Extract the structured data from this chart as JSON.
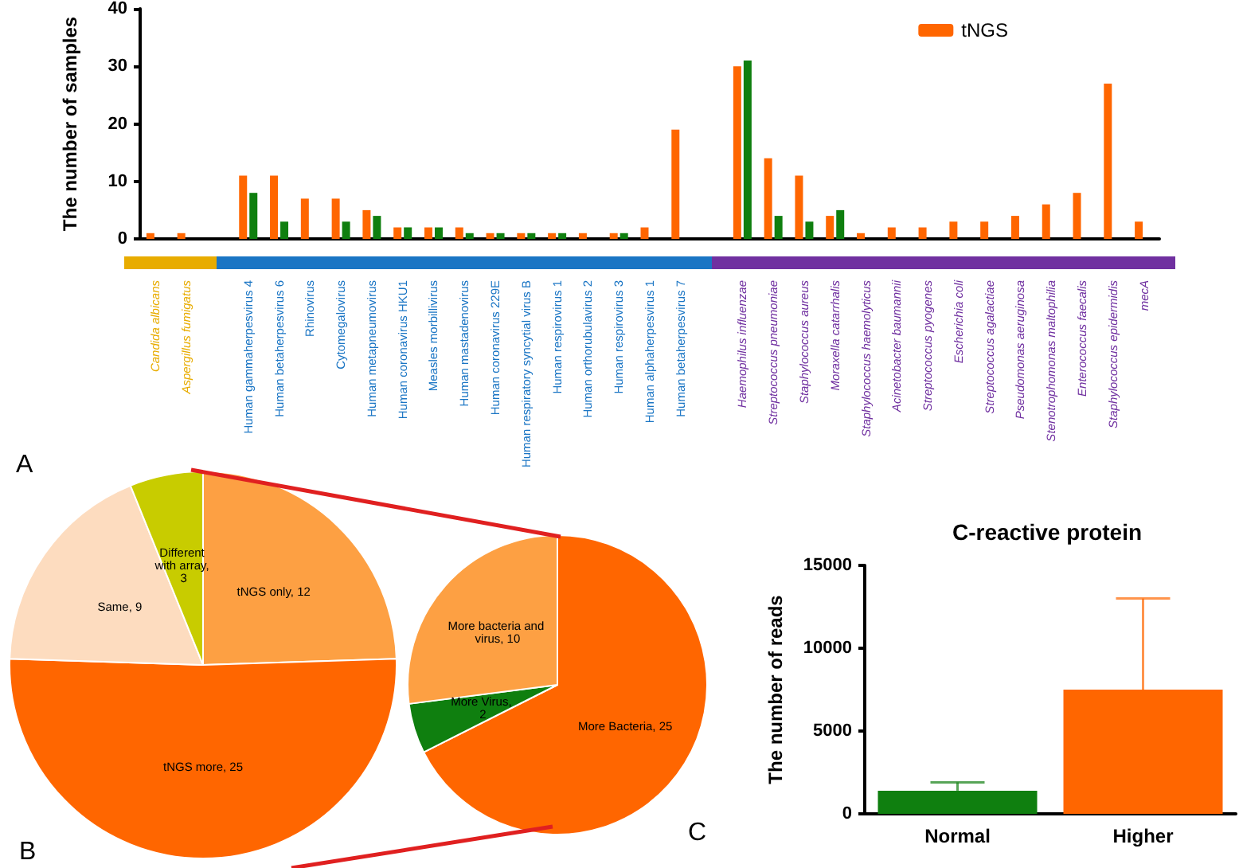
{
  "chart_data": [
    {
      "type": "bar",
      "ylabel": "The number of samples",
      "annotations": [
        "A"
      ],
      "categories": [
        "Candida albicans",
        "Aspergillus fumigatus",
        null,
        "Human gammaherpesvirus 4",
        "Human betaherpesvirus 6",
        "Rhinovirus",
        "Cytomegalovirus",
        "Human metapneumovirus",
        "Human coronavirus HKU1",
        "Measles morbillivirus",
        "Human mastadenovirus",
        "Human coronavirus 229E",
        "Human respiratory syncytial virus B",
        "Human respirovirus 1",
        "Human orthorubulavirus 2",
        "Human respirovirus 3",
        "Human alphaherpesvirus 1",
        "Human betaherpesvirus 7",
        null,
        "Haemophilus influenzae",
        "Streptococcus pneumoniae",
        "Staphylococcus aureus",
        "Moraxella catarrhalis",
        "Staphylococcus haemolyticus",
        "Acinetobacter baumannii",
        "Streptococcus pyogenes",
        "Escherichia coli",
        "Streptococcus agalactiae",
        "Pseudomonas aeruginosa",
        "Stenotrophomonas maltophilia",
        "Enterococcus faecalis",
        "Staphylococcus epidermidis",
        "mecA"
      ],
      "series": [
        {
          "name": "tNGS",
          "color": "#ff6600",
          "values": [
            1,
            1,
            null,
            11,
            11,
            7,
            7,
            5,
            2,
            2,
            2,
            1,
            1,
            1,
            1,
            1,
            2,
            19,
            null,
            30,
            14,
            11,
            4,
            1,
            2,
            2,
            3,
            3,
            4,
            6,
            8,
            27,
            3
          ]
        },
        {
          "color": "#0f7f0f",
          "values": [
            0,
            0,
            null,
            8,
            3,
            0,
            3,
            4,
            2,
            2,
            1,
            1,
            1,
            1,
            0,
            1,
            0,
            0,
            null,
            31,
            4,
            3,
            5,
            0,
            0,
            0,
            0,
            0,
            0,
            0,
            0,
            0,
            0
          ]
        }
      ],
      "ylim": [
        0,
        40
      ],
      "yticks": [
        0,
        10,
        20,
        30,
        40
      ],
      "grid": false,
      "legend": "top right"
    },
    {
      "type": "pie",
      "annotations": [
        "B"
      ],
      "categories": [
        null,
        null,
        null,
        null
      ],
      "values": [
        12,
        25,
        9,
        3
      ],
      "value_labels": [
        "tNGS only, 12",
        "tNGS more, 25",
        "Same, 9",
        "Different with array, 3"
      ],
      "colors": [
        "#fda043",
        "#ff6600",
        "#fddcbf",
        "#c8cc00"
      ]
    },
    {
      "type": "pie",
      "categories": [
        null,
        null,
        null
      ],
      "values": [
        25,
        2,
        10
      ],
      "value_labels": [
        "More Bacteria, 25",
        "More Virus, 2",
        "More bacteria and virus, 10"
      ],
      "colors": [
        "#ff6600",
        "#0f7f0f",
        "#fda043"
      ]
    },
    {
      "type": "bar",
      "title": "C-reactive protein",
      "ylabel": "The number of reads",
      "annotations": [
        "C"
      ],
      "categories": [
        "Normal",
        "Higher"
      ],
      "values": [
        1400,
        7500
      ],
      "colors": [
        "#0f7f0f",
        "#ff6600"
      ],
      "errors": [
        [
          1400,
          1900
        ],
        [
          7500,
          13000
        ]
      ],
      "ylim": [
        0,
        15000
      ],
      "yticks": [
        0,
        5000,
        10000,
        15000
      ],
      "grid": false
    }
  ]
}
